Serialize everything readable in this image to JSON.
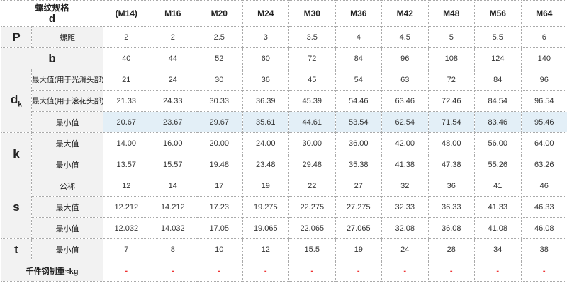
{
  "header": {
    "spec_label": "螺纹规格",
    "spec_symbol": "d",
    "sizes": [
      "(M14)",
      "M16",
      "M20",
      "M24",
      "M30",
      "M36",
      "M42",
      "M48",
      "M56",
      "M64"
    ]
  },
  "rows": {
    "P": {
      "symbol": "P",
      "label": "螺距",
      "values": [
        "2",
        "2",
        "2.5",
        "3",
        "3.5",
        "4",
        "4.5",
        "5",
        "5.5",
        "6"
      ]
    },
    "b": {
      "symbol": "b",
      "values": [
        "40",
        "44",
        "52",
        "60",
        "72",
        "84",
        "96",
        "108",
        "124",
        "140"
      ]
    },
    "dk": {
      "symbol": "d",
      "symbol_sub": "k",
      "max_smooth": {
        "label": "最大值(用于光滑头部)",
        "values": [
          "21",
          "24",
          "30",
          "36",
          "45",
          "54",
          "63",
          "72",
          "84",
          "96"
        ]
      },
      "max_knurled": {
        "label": "最大值(用于滚花头部)",
        "values": [
          "21.33",
          "24.33",
          "30.33",
          "36.39",
          "45.39",
          "54.46",
          "63.46",
          "72.46",
          "84.54",
          "96.54"
        ]
      },
      "min": {
        "label": "最小值",
        "values": [
          "20.67",
          "23.67",
          "29.67",
          "35.61",
          "44.61",
          "53.54",
          "62.54",
          "71.54",
          "83.46",
          "95.46"
        ]
      }
    },
    "k": {
      "symbol": "k",
      "max": {
        "label": "最大值",
        "values": [
          "14.00",
          "16.00",
          "20.00",
          "24.00",
          "30.00",
          "36.00",
          "42.00",
          "48.00",
          "56.00",
          "64.00"
        ]
      },
      "min": {
        "label": "最小值",
        "values": [
          "13.57",
          "15.57",
          "19.48",
          "23.48",
          "29.48",
          "35.38",
          "41.38",
          "47.38",
          "55.26",
          "63.26"
        ]
      }
    },
    "s": {
      "symbol": "s",
      "nominal": {
        "label": "公称",
        "values": [
          "12",
          "14",
          "17",
          "19",
          "22",
          "27",
          "32",
          "36",
          "41",
          "46"
        ]
      },
      "max": {
        "label": "最大值",
        "values": [
          "12.212",
          "14.212",
          "17.23",
          "19.275",
          "22.275",
          "27.275",
          "32.33",
          "36.33",
          "41.33",
          "46.33"
        ]
      },
      "min": {
        "label": "最小值",
        "values": [
          "12.032",
          "14.032",
          "17.05",
          "19.065",
          "22.065",
          "27.065",
          "32.08",
          "36.08",
          "41.08",
          "46.08"
        ]
      }
    },
    "t": {
      "symbol": "t",
      "min": {
        "label": "最小值",
        "values": [
          "7",
          "8",
          "10",
          "12",
          "15.5",
          "19",
          "24",
          "28",
          "34",
          "38"
        ]
      }
    },
    "weight": {
      "label": "千件钢制重≈kg",
      "values": [
        "-",
        "-",
        "-",
        "-",
        "-",
        "-",
        "-",
        "-",
        "-",
        "-"
      ]
    }
  },
  "colors": {
    "highlight_row": "#e3eff7",
    "header_bg": "#e6e6e6",
    "label_bg": "#f2f2f2",
    "dash": "#e33333"
  }
}
